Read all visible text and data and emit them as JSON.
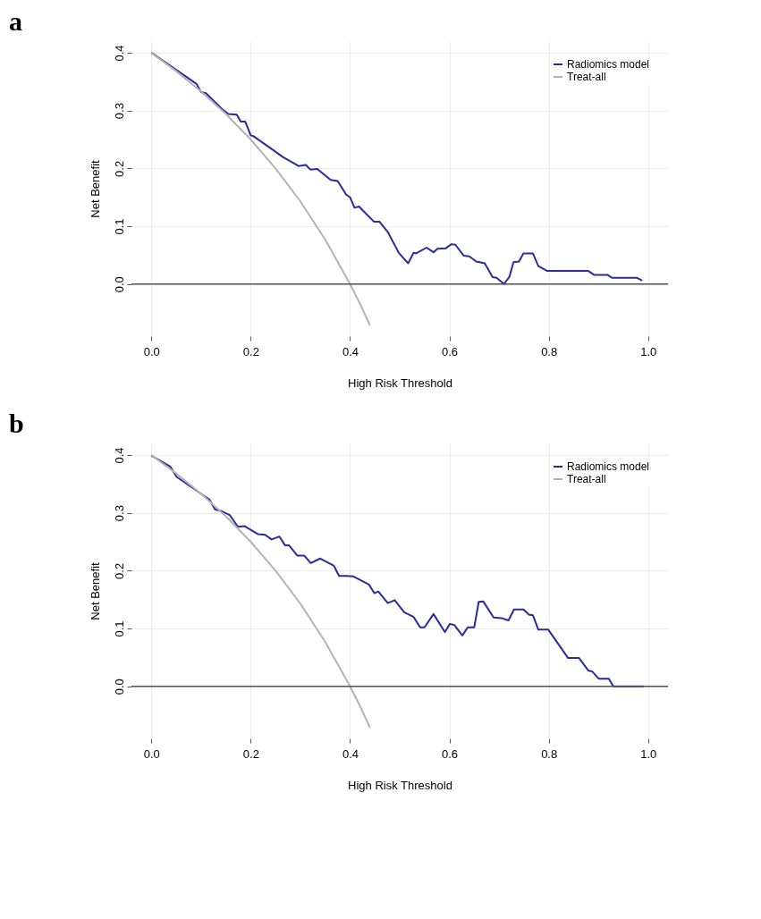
{
  "chart_data": [
    {
      "type": "line",
      "title": "a",
      "xlabel": "High Risk Threshold",
      "ylabel": "Net Benefit",
      "xlim": [
        -0.04,
        1.04
      ],
      "ylim": [
        -0.09,
        0.42
      ],
      "xticks": [
        {
          "value": 0,
          "label": "0.0"
        },
        {
          "value": 0.2,
          "label": "0.2"
        },
        {
          "value": 0.4,
          "label": "0.4"
        },
        {
          "value": 0.6,
          "label": "0.6"
        },
        {
          "value": 0.8,
          "label": "0.8"
        },
        {
          "value": 1,
          "label": "1.0"
        }
      ],
      "yticks": [
        {
          "value": 0,
          "label": "0.0"
        },
        {
          "value": 0.1,
          "label": "0.1"
        },
        {
          "value": 0.2,
          "label": "0.2"
        },
        {
          "value": 0.3,
          "label": "0.3"
        },
        {
          "value": 0.4,
          "label": "0.4"
        }
      ],
      "grid": true,
      "legend": "top right",
      "ref_lines": [
        {
          "axis": "y",
          "value": 0,
          "color": "#555555"
        }
      ],
      "series": [
        {
          "name": "Radiomics model",
          "color": "#2b2ba0",
          "x": [
            0.0,
            0.091,
            0.1,
            0.11,
            0.142,
            0.155,
            0.172,
            0.18,
            0.189,
            0.2,
            0.205,
            0.253,
            0.264,
            0.297,
            0.311,
            0.32,
            0.334,
            0.361,
            0.375,
            0.392,
            0.4,
            0.409,
            0.418,
            0.448,
            0.459,
            0.476,
            0.498,
            0.517,
            0.528,
            0.533,
            0.554,
            0.568,
            0.576,
            0.593,
            0.604,
            0.612,
            0.629,
            0.64,
            0.654,
            0.671,
            0.687,
            0.695,
            0.71,
            0.721,
            0.729,
            0.74,
            0.749,
            0.768,
            0.779,
            0.796,
            0.879,
            0.891,
            0.918,
            0.927,
            0.977,
            0.988
          ],
          "values": [
            0.4,
            0.346,
            0.332,
            0.33,
            0.303,
            0.294,
            0.293,
            0.281,
            0.281,
            0.257,
            0.256,
            0.227,
            0.22,
            0.204,
            0.206,
            0.198,
            0.199,
            0.18,
            0.178,
            0.155,
            0.15,
            0.132,
            0.134,
            0.108,
            0.108,
            0.09,
            0.054,
            0.036,
            0.054,
            0.053,
            0.063,
            0.055,
            0.061,
            0.062,
            0.069,
            0.068,
            0.049,
            0.048,
            0.039,
            0.036,
            0.012,
            0.011,
            0.0,
            0.013,
            0.038,
            0.039,
            0.053,
            0.053,
            0.031,
            0.023,
            0.023,
            0.016,
            0.016,
            0.011,
            0.011,
            0.006
          ]
        },
        {
          "name": "Treat-all",
          "color": "#b4b4b4",
          "x": [
            0,
            0.05,
            0.1,
            0.15,
            0.2,
            0.25,
            0.3,
            0.35,
            0.4,
            0.42,
            0.44
          ],
          "values": [
            0.4,
            0.368,
            0.333,
            0.294,
            0.25,
            0.2,
            0.143,
            0.077,
            0.0,
            -0.034,
            -0.071
          ]
        }
      ]
    },
    {
      "type": "line",
      "title": "b",
      "xlabel": "High Risk Threshold",
      "ylabel": "Net Benefit",
      "xlim": [
        -0.04,
        1.04
      ],
      "ylim": [
        -0.09,
        0.42
      ],
      "xticks": [
        {
          "value": 0,
          "label": "0.0"
        },
        {
          "value": 0.2,
          "label": "0.2"
        },
        {
          "value": 0.4,
          "label": "0.4"
        },
        {
          "value": 0.6,
          "label": "0.6"
        },
        {
          "value": 0.8,
          "label": "0.8"
        },
        {
          "value": 1,
          "label": "1.0"
        }
      ],
      "yticks": [
        {
          "value": 0,
          "label": "0.0"
        },
        {
          "value": 0.1,
          "label": "0.1"
        },
        {
          "value": 0.2,
          "label": "0.2"
        },
        {
          "value": 0.3,
          "label": "0.3"
        },
        {
          "value": 0.4,
          "label": "0.4"
        }
      ],
      "grid": true,
      "legend": "top right",
      "ref_lines": [
        {
          "axis": "y",
          "value": 0,
          "color": "#555555"
        }
      ],
      "series": [
        {
          "name": "Radiomics model",
          "color": "#2b2ba0",
          "x": [
            0.0,
            0.038,
            0.051,
            0.117,
            0.128,
            0.141,
            0.158,
            0.174,
            0.188,
            0.215,
            0.229,
            0.242,
            0.258,
            0.269,
            0.277,
            0.294,
            0.308,
            0.321,
            0.34,
            0.367,
            0.378,
            0.393,
            0.407,
            0.438,
            0.449,
            0.457,
            0.476,
            0.49,
            0.509,
            0.528,
            0.541,
            0.55,
            0.568,
            0.591,
            0.601,
            0.61,
            0.626,
            0.637,
            0.65,
            0.659,
            0.668,
            0.689,
            0.705,
            0.719,
            0.73,
            0.749,
            0.76,
            0.768,
            0.779,
            0.799,
            0.839,
            0.861,
            0.88,
            0.887,
            0.901,
            0.921,
            0.93,
            0.991
          ],
          "values": [
            0.399,
            0.38,
            0.362,
            0.323,
            0.306,
            0.303,
            0.296,
            0.276,
            0.277,
            0.263,
            0.262,
            0.254,
            0.259,
            0.244,
            0.244,
            0.226,
            0.226,
            0.213,
            0.221,
            0.209,
            0.191,
            0.191,
            0.19,
            0.176,
            0.161,
            0.164,
            0.144,
            0.149,
            0.128,
            0.12,
            0.102,
            0.102,
            0.125,
            0.094,
            0.108,
            0.106,
            0.088,
            0.102,
            0.102,
            0.146,
            0.147,
            0.119,
            0.118,
            0.114,
            0.133,
            0.133,
            0.124,
            0.123,
            0.098,
            0.098,
            0.049,
            0.049,
            0.027,
            0.026,
            0.013,
            0.013,
            0.0,
            0.0
          ]
        },
        {
          "name": "Treat-all",
          "color": "#b4b4b4",
          "x": [
            0,
            0.05,
            0.1,
            0.15,
            0.2,
            0.25,
            0.3,
            0.35,
            0.4,
            0.42,
            0.44
          ],
          "values": [
            0.4,
            0.368,
            0.333,
            0.294,
            0.25,
            0.2,
            0.143,
            0.077,
            0.0,
            -0.034,
            -0.071
          ]
        }
      ]
    }
  ]
}
